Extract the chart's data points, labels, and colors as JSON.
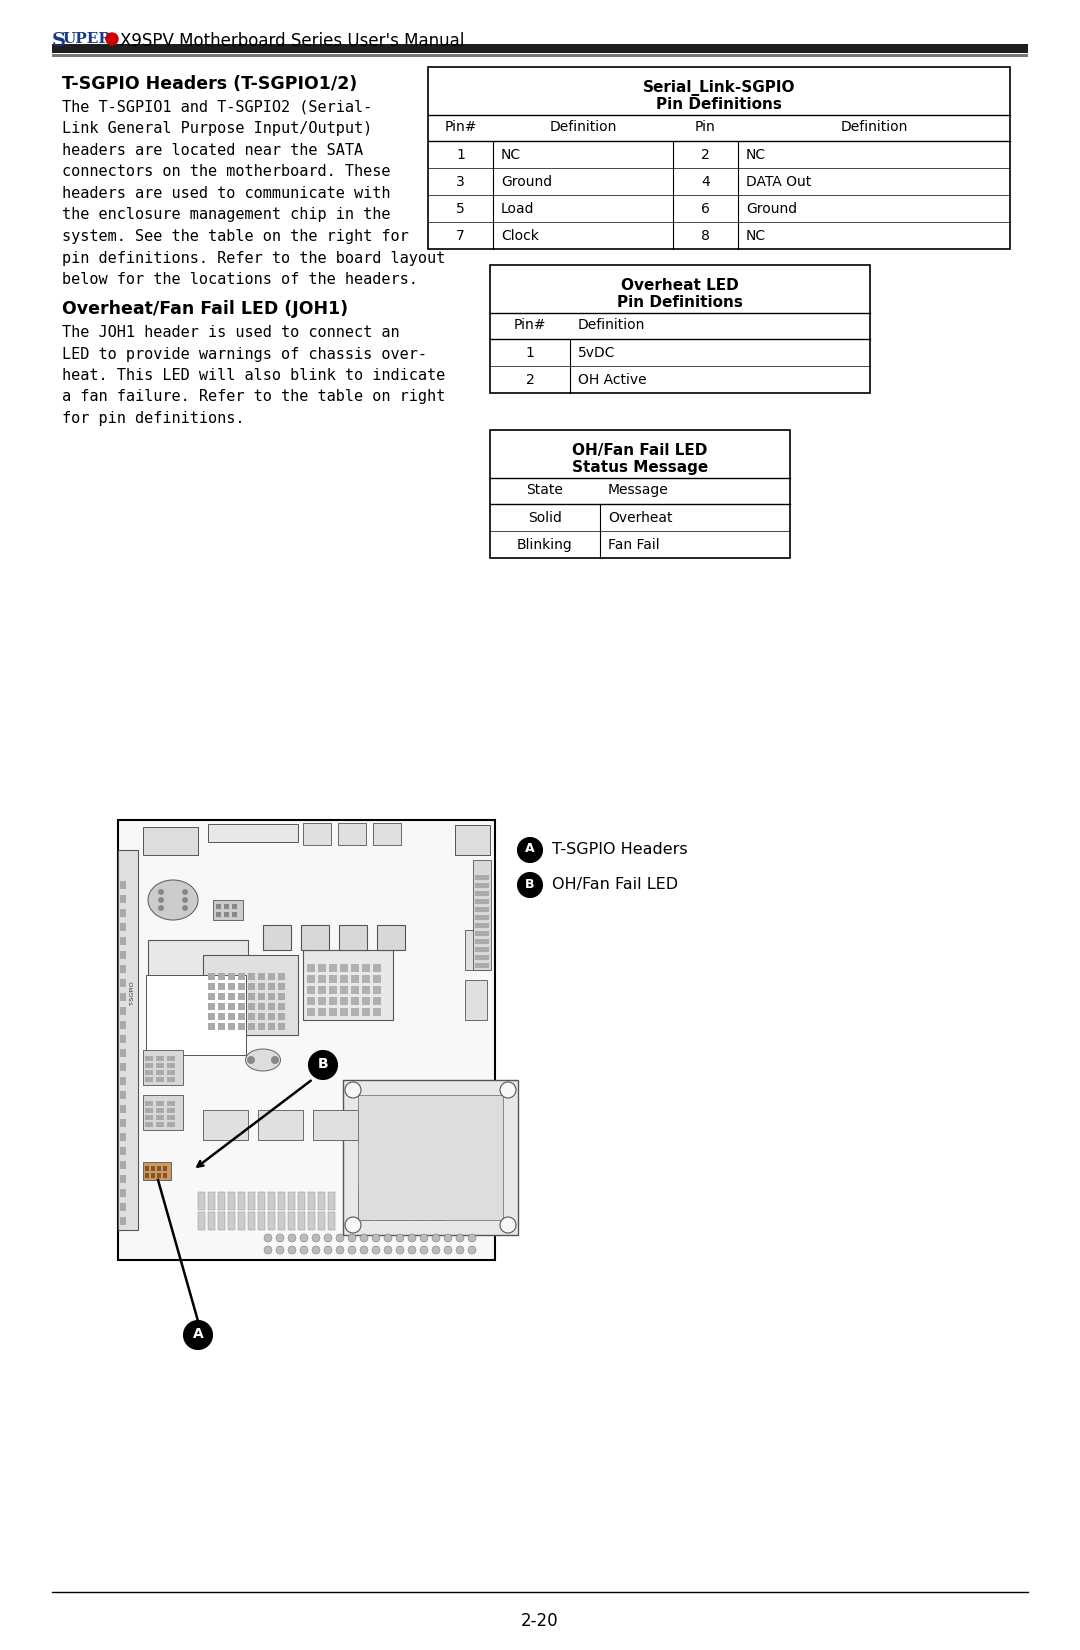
{
  "page_number": "2-20",
  "section1_title": "T-SGPIO Headers (T-SGPIO1/2)",
  "section1_body_lines": [
    "The T-SGPIO1 and T-SGPIO2 (Serial-",
    "Link General Purpose Input/Output)",
    "headers are located near the SATA",
    "connectors on the motherboard. These",
    "headers are used to communicate with",
    "the enclosure management chip in the",
    "system. See the table on the right for",
    "pin definitions. Refer to the board layout",
    "below for the locations of the headers."
  ],
  "section2_title": "Overheat/Fan Fail LED (JOH1)",
  "section2_body_lines": [
    "The JOH1 header is used to connect an",
    "LED to provide warnings of chassis over-",
    "heat. This LED will also blink to indicate",
    "a fan failure. Refer to the table on right",
    "for pin definitions."
  ],
  "table1_title1": "Serial_Link-SGPIO",
  "table1_title2": "Pin Definitions",
  "table1_headers": [
    "Pin#",
    "Definition",
    "Pin",
    "Definition"
  ],
  "table1_rows": [
    [
      "1",
      "NC",
      "2",
      "NC"
    ],
    [
      "3",
      "Ground",
      "4",
      "DATA Out"
    ],
    [
      "5",
      "Load",
      "6",
      "Ground"
    ],
    [
      "7",
      "Clock",
      "8",
      "NC"
    ]
  ],
  "table1_shaded_rows": [
    0,
    2
  ],
  "table2_title1": "Overheat LED",
  "table2_title2": "Pin Definitions",
  "table2_headers": [
    "Pin#",
    "Definition"
  ],
  "table2_rows": [
    [
      "1",
      "5vDC"
    ],
    [
      "2",
      "OH Active"
    ]
  ],
  "table2_shaded_rows": [
    0
  ],
  "table3_title1": "OH/Fan Fail LED",
  "table3_title2": "Status Message",
  "table3_headers": [
    "State",
    "Message"
  ],
  "table3_rows": [
    [
      "Solid",
      "Overheat"
    ],
    [
      "Blinking",
      "Fan Fail"
    ]
  ],
  "table3_shaded_rows": [
    0
  ],
  "legend_A": "T-SGPIO Headers",
  "legend_B": "OH/Fan Fail LED",
  "bg_color": "#ffffff",
  "shaded_color": "#d0d0d0",
  "border_color": "#000000",
  "text_color": "#000000",
  "blue_color": "#1a3a8c",
  "red_color": "#cc0000",
  "header_bar_color": "#1e1e1e",
  "mono_font": "DejaVu Sans Mono",
  "sans_font": "DejaVu Sans"
}
